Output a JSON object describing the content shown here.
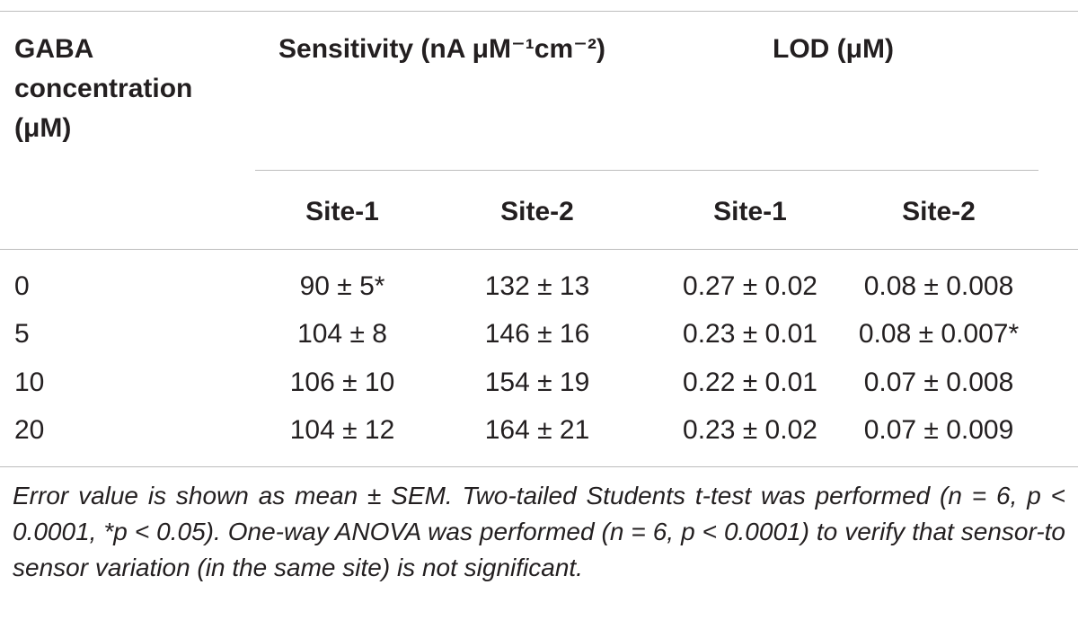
{
  "table": {
    "header": {
      "first_col": [
        "GABA",
        "concentration",
        "(μM)"
      ],
      "group_sensitivity": "Sensitivity (nA μM⁻¹cm⁻²)",
      "group_lod": "LOD (μM)",
      "sub_site1": "Site-1",
      "sub_site2": "Site-2"
    },
    "rows": [
      {
        "conc": "0",
        "sens_site1": "90 ± 5*",
        "sens_site2": "132 ± 13",
        "lod_site1": "0.27 ± 0.02",
        "lod_site2": "0.08 ± 0.008"
      },
      {
        "conc": "5",
        "sens_site1": "104 ± 8",
        "sens_site2": "146 ± 16",
        "lod_site1": "0.23 ± 0.01",
        "lod_site2": "0.08 ± 0.007*"
      },
      {
        "conc": "10",
        "sens_site1": "106 ± 10",
        "sens_site2": "154 ± 19",
        "lod_site1": "0.22 ± 0.01",
        "lod_site2": "0.07 ± 0.008"
      },
      {
        "conc": "20",
        "sens_site1": "104 ± 12",
        "sens_site2": "164 ± 21",
        "lod_site1": "0.23 ± 0.02",
        "lod_site2": "0.07 ± 0.009"
      }
    ]
  },
  "footnote": "Error value is shown as mean ± SEM. Two-tailed Students t-test was performed (n = 6, p < 0.0001, *p < 0.05). One-way ANOVA was performed (n = 6, p < 0.0001) to verify that sensor-to sensor variation (in the same site) is not significant."
}
